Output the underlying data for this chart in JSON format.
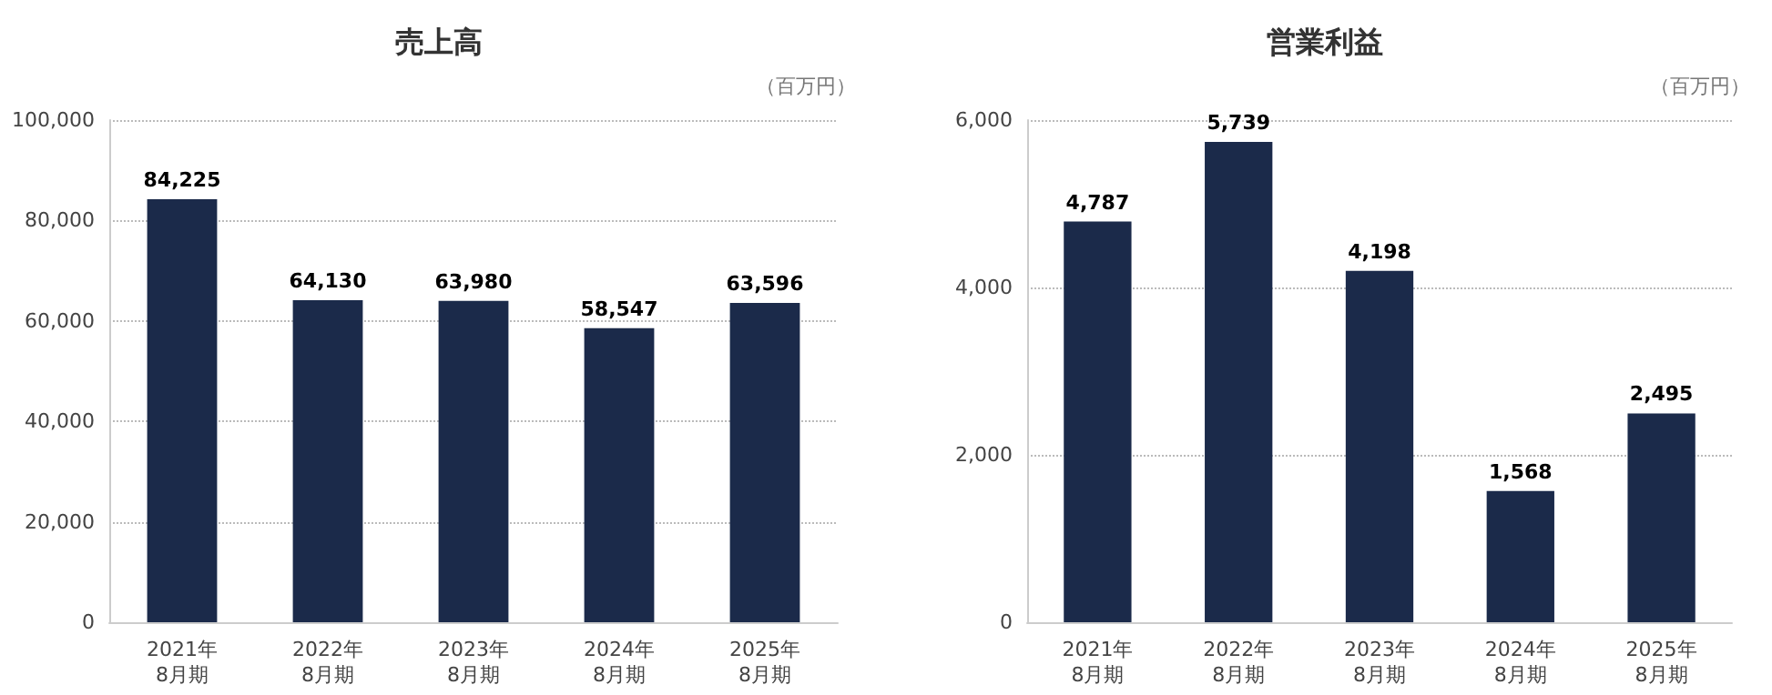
{
  "chart_data": [
    {
      "type": "bar",
      "title": "売上高",
      "annotations": [
        "（百万円）"
      ],
      "categories": [
        "2021年\n8月期",
        "2022年\n8月期",
        "2023年\n8月期",
        "2024年\n8月期",
        "2025年\n8月期"
      ],
      "series": [
        {
          "color": "#1b2a4a",
          "values": [
            84225,
            64130,
            63980,
            58547,
            63596
          ]
        }
      ],
      "value_labels": [
        "84,225",
        "64,130",
        "63,980",
        "58,547",
        "63,596"
      ],
      "ylim": [
        0,
        100000
      ],
      "yticks": [
        {
          "value": 0,
          "label": "0"
        },
        {
          "value": 20000,
          "label": "20,000"
        },
        {
          "value": 40000,
          "label": "40,000"
        },
        {
          "value": 60000,
          "label": "60,000"
        },
        {
          "value": 80000,
          "label": "80,000"
        },
        {
          "value": 100000,
          "label": "100,000"
        }
      ],
      "grid": "y"
    },
    {
      "type": "bar",
      "title": "営業利益",
      "annotations": [
        "（百万円）"
      ],
      "categories": [
        "2021年\n8月期",
        "2022年\n8月期",
        "2023年\n8月期",
        "2024年\n8月期",
        "2025年\n8月期"
      ],
      "series": [
        {
          "color": "#1b2a4a",
          "values": [
            4787,
            5739,
            4198,
            1568,
            2495
          ]
        }
      ],
      "value_labels": [
        "4,787",
        "5,739",
        "4,198",
        "1,568",
        "2,495"
      ],
      "ylim": [
        0,
        6000
      ],
      "yticks": [
        {
          "value": 0,
          "label": "0"
        },
        {
          "value": 2000,
          "label": "2,000"
        },
        {
          "value": 4000,
          "label": "4,000"
        },
        {
          "value": 6000,
          "label": "6,000"
        }
      ],
      "grid": "y"
    }
  ]
}
